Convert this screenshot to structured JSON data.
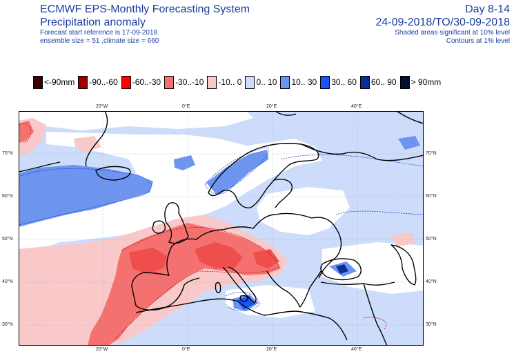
{
  "header": {
    "system": "ECMWF EPS-Monthly Forecasting System",
    "parameter": "Precipitation anomaly",
    "start_ref": "Forecast start reference is 17-09-2018",
    "ensemble": "ensemble size = 51  ,climate size = 660",
    "day_range": "Day 8-14",
    "period": "24-09-2018/TO/30-09-2018",
    "shaded_note": "Shaded areas significant at 10% level",
    "contour_note": "Contours at 1% level"
  },
  "legend": [
    {
      "label": "<-90mm",
      "color": "#3b0000"
    },
    {
      "label": "-90..-60",
      "color": "#9a0000"
    },
    {
      "label": "-60..-30",
      "color": "#ff0000"
    },
    {
      "label": "-30..-10",
      "color": "#f4716f"
    },
    {
      "label": "-10..  0",
      "color": "#f9c9c9"
    },
    {
      "label": "0.. 10",
      "color": "#cddcfa"
    },
    {
      "label": "10.. 30",
      "color": "#6d94ef"
    },
    {
      "label": "30.. 60",
      "color": "#1c54f5"
    },
    {
      "label": "60.. 90",
      "color": "#0a2d9a"
    },
    {
      "label": "> 90mm",
      "color": "#001131"
    }
  ],
  "axes": {
    "lon_top": [
      "20°W",
      "0°E",
      "20°E",
      "40°E"
    ],
    "lon_bottom": [
      "20°W",
      "0°E",
      "20°E",
      "40°E"
    ],
    "lat_left": [
      "70°N",
      "60°N",
      "50°N",
      "40°N",
      "30°N"
    ],
    "lat_right": [
      "70°N",
      "60°N",
      "50°N",
      "40°N",
      "30°N"
    ]
  }
}
